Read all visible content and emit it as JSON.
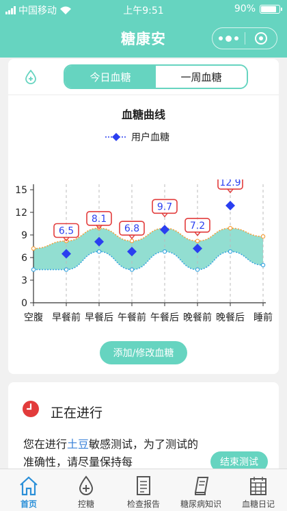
{
  "status_bar": {
    "carrier": "中国移动",
    "time": "上午9:51",
    "battery": "90%",
    "battery_level": 0.9
  },
  "nav": {
    "title": "糖康安"
  },
  "segment": {
    "tabs": [
      {
        "label": "今日血糖",
        "active": true
      },
      {
        "label": "一周血糖",
        "active": false
      }
    ]
  },
  "chart_card": {
    "title": "血糖曲线",
    "legend": "用户血糖",
    "button_label": "添加/修改血糖"
  },
  "chart_data": {
    "type": "line",
    "title": "血糖曲线",
    "categories": [
      "空腹",
      "早餐前",
      "早餐后",
      "午餐前",
      "午餐后",
      "晚餐前",
      "晚餐后",
      "睡前"
    ],
    "ylim": [
      0,
      15
    ],
    "yticks": [
      0,
      3,
      6,
      9,
      12,
      15
    ],
    "grid": "dashed vertical lines",
    "legend_position": "top",
    "series": [
      {
        "name": "用户血糖",
        "values": [
          null,
          6.5,
          8.1,
          6.8,
          9.7,
          7.2,
          12.9,
          null
        ]
      }
    ],
    "range_upper": [
      7.2,
      8.2,
      9.9,
      8.2,
      9.9,
      8.2,
      9.9,
      8.8
    ],
    "range_lower": [
      4.4,
      4.4,
      6.8,
      4.4,
      6.8,
      4.4,
      6.8,
      5.0
    ],
    "colors": {
      "user": "#2a3ff0",
      "label_border": "#e23b3b",
      "upper": "#f5a03c",
      "lower": "#3aa6e0",
      "band": "#7fd8c9"
    }
  },
  "progress_card": {
    "title": "正在进行",
    "text_before": "您在进行",
    "highlight": "土豆",
    "text_after": "敏感测试，为了测试的准确性，请尽量保持每",
    "end_button": "结束测试"
  },
  "tab_bar": {
    "items": [
      {
        "label": "首页",
        "icon": "home-icon",
        "active": true
      },
      {
        "label": "控糖",
        "icon": "drop-plus-icon",
        "active": false
      },
      {
        "label": "检查报告",
        "icon": "report-icon",
        "active": false
      },
      {
        "label": "糖尿病知识",
        "icon": "book-icon",
        "active": false
      },
      {
        "label": "血糖日记",
        "icon": "calendar-icon",
        "active": false
      }
    ]
  },
  "theme": {
    "primary": "#66d4c0",
    "accent_blue": "#2a8fd8",
    "alert_red": "#e23b3b"
  }
}
